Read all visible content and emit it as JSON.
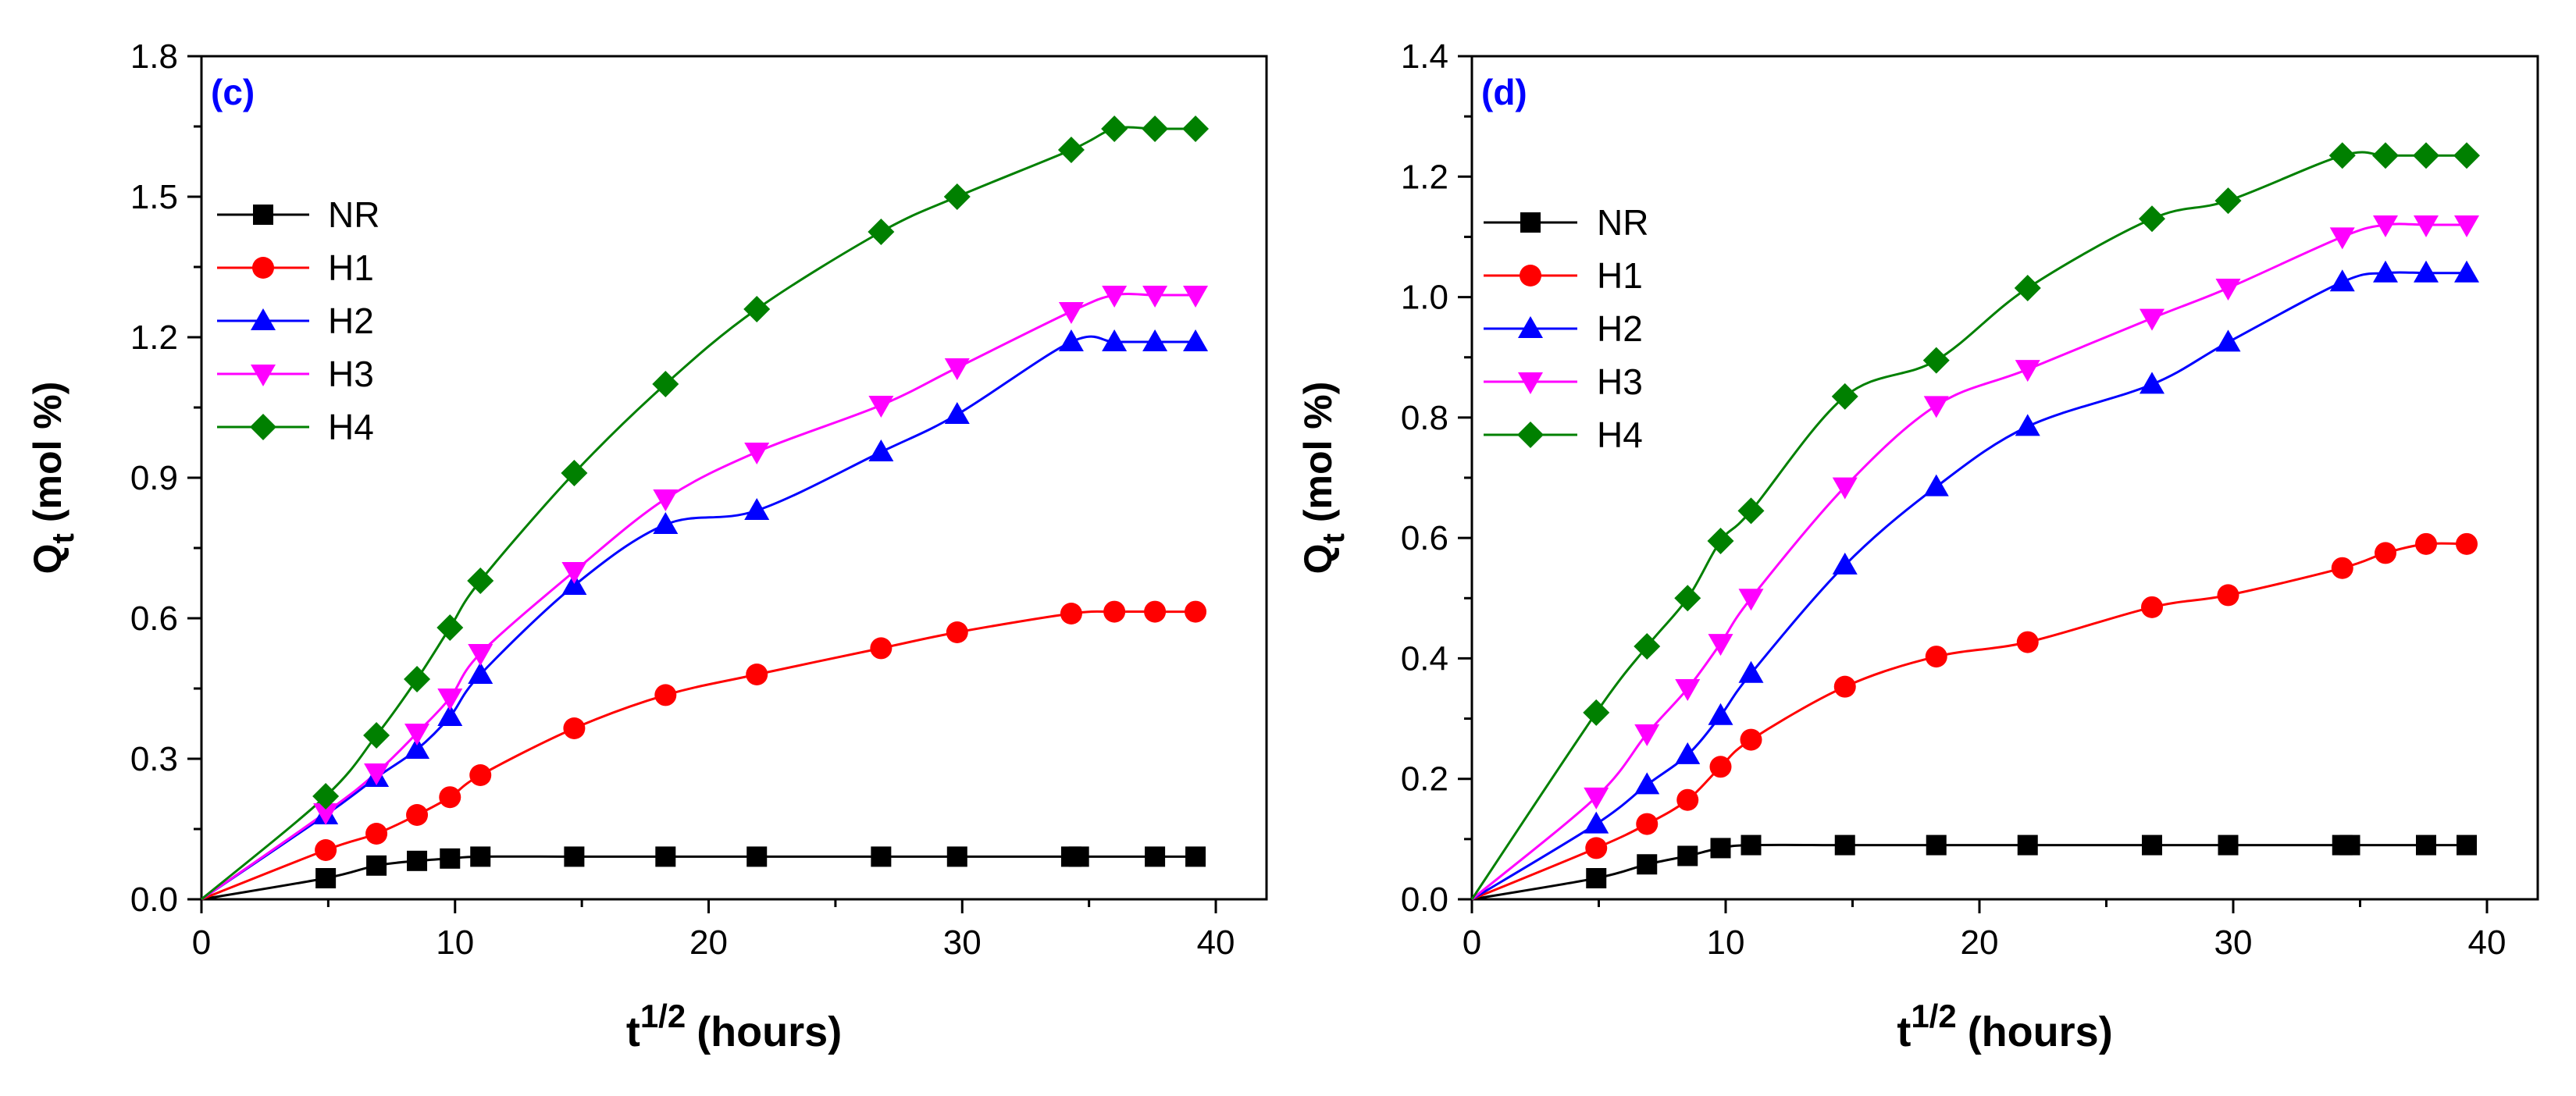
{
  "chart_data": [
    {
      "type": "line",
      "panel_label": "(c)",
      "xlabel_base": "t",
      "xlabel_sup": "1/2",
      "xlabel_unit": "(hours)",
      "ylabel_main": "Q",
      "ylabel_sub": "t",
      "ylabel_unit": "(mol %)",
      "xlim": [
        0,
        42
      ],
      "ylim": [
        0,
        1.8
      ],
      "xticks": [
        0,
        10,
        20,
        30,
        40
      ],
      "xtick_labels": [
        "0",
        "10",
        "20",
        "30",
        "40"
      ],
      "yticks": [
        0,
        0.3,
        0.6,
        0.9,
        1.2,
        1.5,
        1.8
      ],
      "ytick_labels": [
        "0.0",
        "0.3",
        "0.6",
        "0.9",
        "1.2",
        "1.5",
        "1.8"
      ],
      "legend_position": "upper-left",
      "series": [
        {
          "name": "NR",
          "marker": "square",
          "color": "#000000",
          "x": [
            0,
            4.9,
            6.9,
            8.5,
            9.8,
            11.0,
            14.7,
            18.3,
            21.9,
            26.8,
            29.8,
            34.3,
            34.6,
            37.6,
            39.2
          ],
          "y": [
            0,
            0.045,
            0.072,
            0.082,
            0.087,
            0.091,
            0.091,
            0.091,
            0.091,
            0.091,
            0.091,
            0.091,
            0.091,
            0.091,
            0.091
          ]
        },
        {
          "name": "H1",
          "marker": "circle",
          "color": "#ff0000",
          "x": [
            0,
            4.9,
            6.9,
            8.5,
            9.8,
            11.0,
            14.7,
            18.3,
            21.9,
            26.8,
            29.8,
            34.3,
            36.0,
            37.6,
            39.2
          ],
          "y": [
            0,
            0.105,
            0.14,
            0.18,
            0.218,
            0.265,
            0.365,
            0.436,
            0.48,
            0.536,
            0.57,
            0.61,
            0.614,
            0.614,
            0.614
          ]
        },
        {
          "name": "H2",
          "marker": "triangle-up",
          "color": "#0000ff",
          "x": [
            0,
            4.9,
            6.9,
            8.5,
            9.8,
            11.0,
            14.7,
            18.3,
            21.9,
            26.8,
            29.8,
            34.3,
            36.0,
            37.6,
            39.2
          ],
          "y": [
            0,
            0.18,
            0.26,
            0.32,
            0.39,
            0.48,
            0.67,
            0.8,
            0.83,
            0.955,
            1.035,
            1.19,
            1.19,
            1.19,
            1.19
          ]
        },
        {
          "name": "H3",
          "marker": "triangle-down",
          "color": "#ff00ff",
          "x": [
            0,
            4.9,
            6.9,
            8.5,
            9.8,
            11.0,
            14.7,
            18.3,
            21.9,
            26.8,
            29.8,
            34.3,
            36.0,
            37.6,
            39.2
          ],
          "y": [
            0,
            0.185,
            0.27,
            0.355,
            0.43,
            0.525,
            0.7,
            0.855,
            0.955,
            1.055,
            1.135,
            1.255,
            1.29,
            1.29,
            1.29
          ]
        },
        {
          "name": "H4",
          "marker": "diamond",
          "color": "#008000",
          "x": [
            0,
            4.9,
            6.9,
            8.5,
            9.8,
            11.0,
            14.7,
            18.3,
            21.9,
            26.8,
            29.8,
            34.3,
            36.0,
            37.6,
            39.2
          ],
          "y": [
            0,
            0.22,
            0.35,
            0.47,
            0.58,
            0.68,
            0.91,
            1.1,
            1.26,
            1.425,
            1.5,
            1.6,
            1.645,
            1.645,
            1.645
          ]
        }
      ]
    },
    {
      "type": "line",
      "panel_label": "(d)",
      "xlabel_base": "t",
      "xlabel_sup": "1/2",
      "xlabel_unit": "(hours)",
      "ylabel_main": "Q",
      "ylabel_sub": "t",
      "ylabel_unit": "(mol %)",
      "xlim": [
        0,
        42
      ],
      "ylim": [
        0,
        1.4
      ],
      "xticks": [
        0,
        10,
        20,
        30,
        40
      ],
      "xtick_labels": [
        "0",
        "10",
        "20",
        "30",
        "40"
      ],
      "yticks": [
        0,
        0.2,
        0.4,
        0.6,
        0.8,
        1.0,
        1.2,
        1.4
      ],
      "ytick_labels": [
        "0.0",
        "0.2",
        "0.4",
        "0.6",
        "0.8",
        "1.0",
        "1.2",
        "1.4"
      ],
      "legend_position": "upper-left",
      "series": [
        {
          "name": "NR",
          "marker": "square",
          "color": "#000000",
          "x": [
            0,
            4.9,
            6.9,
            8.5,
            9.8,
            11.0,
            14.7,
            18.3,
            21.9,
            26.8,
            29.8,
            34.3,
            34.6,
            37.6,
            39.2
          ],
          "y": [
            0,
            0.035,
            0.058,
            0.072,
            0.085,
            0.09,
            0.09,
            0.09,
            0.09,
            0.09,
            0.09,
            0.09,
            0.09,
            0.09,
            0.09
          ]
        },
        {
          "name": "H1",
          "marker": "circle",
          "color": "#ff0000",
          "x": [
            0,
            4.9,
            6.9,
            8.5,
            9.8,
            11.0,
            14.7,
            18.3,
            21.9,
            26.8,
            29.8,
            34.3,
            36.0,
            37.6,
            39.2
          ],
          "y": [
            0,
            0.085,
            0.125,
            0.165,
            0.22,
            0.265,
            0.353,
            0.403,
            0.427,
            0.485,
            0.505,
            0.55,
            0.575,
            0.59,
            0.59
          ]
        },
        {
          "name": "H2",
          "marker": "triangle-up",
          "color": "#0000ff",
          "x": [
            0,
            4.9,
            6.9,
            8.5,
            9.8,
            11.0,
            14.7,
            18.3,
            21.9,
            26.8,
            29.8,
            34.3,
            36.0,
            37.6,
            39.2
          ],
          "y": [
            0,
            0.125,
            0.19,
            0.24,
            0.305,
            0.375,
            0.555,
            0.685,
            0.785,
            0.855,
            0.925,
            1.025,
            1.04,
            1.04,
            1.04
          ]
        },
        {
          "name": "H3",
          "marker": "triangle-down",
          "color": "#ff00ff",
          "x": [
            0,
            4.9,
            6.9,
            8.5,
            9.8,
            11.0,
            14.7,
            18.3,
            21.9,
            26.8,
            29.8,
            34.3,
            36.0,
            37.6,
            39.2
          ],
          "y": [
            0,
            0.17,
            0.275,
            0.35,
            0.425,
            0.5,
            0.685,
            0.82,
            0.88,
            0.965,
            1.015,
            1.1,
            1.12,
            1.12,
            1.12
          ]
        },
        {
          "name": "H4",
          "marker": "diamond",
          "color": "#008000",
          "x": [
            0,
            4.9,
            6.9,
            8.5,
            9.8,
            11.0,
            14.7,
            18.3,
            21.9,
            26.8,
            29.8,
            34.3,
            36.0,
            37.6,
            39.2
          ],
          "y": [
            0,
            0.31,
            0.42,
            0.5,
            0.595,
            0.645,
            0.835,
            0.895,
            1.015,
            1.13,
            1.16,
            1.235,
            1.235,
            1.235,
            1.235
          ]
        }
      ]
    }
  ]
}
